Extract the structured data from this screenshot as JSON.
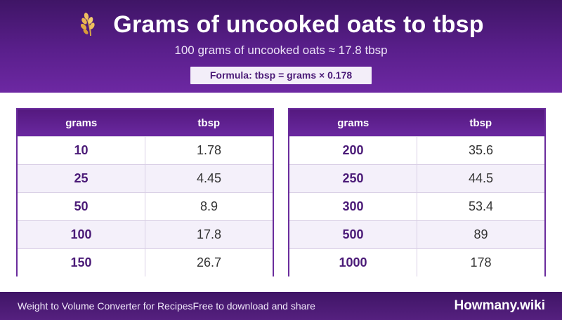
{
  "header": {
    "title": "Grams of uncooked oats to tbsp",
    "subtitle": "100 grams of uncooked oats ≈ 17.8 tbsp",
    "formula": "Formula: tbsp = grams × 0.178",
    "icon": "oat-stalk-icon"
  },
  "tables": [
    {
      "col_grams": "grams",
      "col_tbsp": "tbsp",
      "rows": [
        {
          "grams": "10",
          "tbsp": "1.78"
        },
        {
          "grams": "25",
          "tbsp": "4.45"
        },
        {
          "grams": "50",
          "tbsp": "8.9"
        },
        {
          "grams": "100",
          "tbsp": "17.8"
        },
        {
          "grams": "150",
          "tbsp": "26.7"
        }
      ]
    },
    {
      "col_grams": "grams",
      "col_tbsp": "tbsp",
      "rows": [
        {
          "grams": "200",
          "tbsp": "35.6"
        },
        {
          "grams": "250",
          "tbsp": "44.5"
        },
        {
          "grams": "300",
          "tbsp": "53.4"
        },
        {
          "grams": "500",
          "tbsp": "89"
        },
        {
          "grams": "1000",
          "tbsp": "178"
        }
      ]
    }
  ],
  "footer": {
    "left_text": "Weight to Volume Converter for RecipesFree to download and share",
    "brand": "Howmany.wiki"
  },
  "colors": {
    "header_purple": "#5a1f8c",
    "accent_text": "#4a1a77",
    "row_alt": "#f4f0fa"
  }
}
